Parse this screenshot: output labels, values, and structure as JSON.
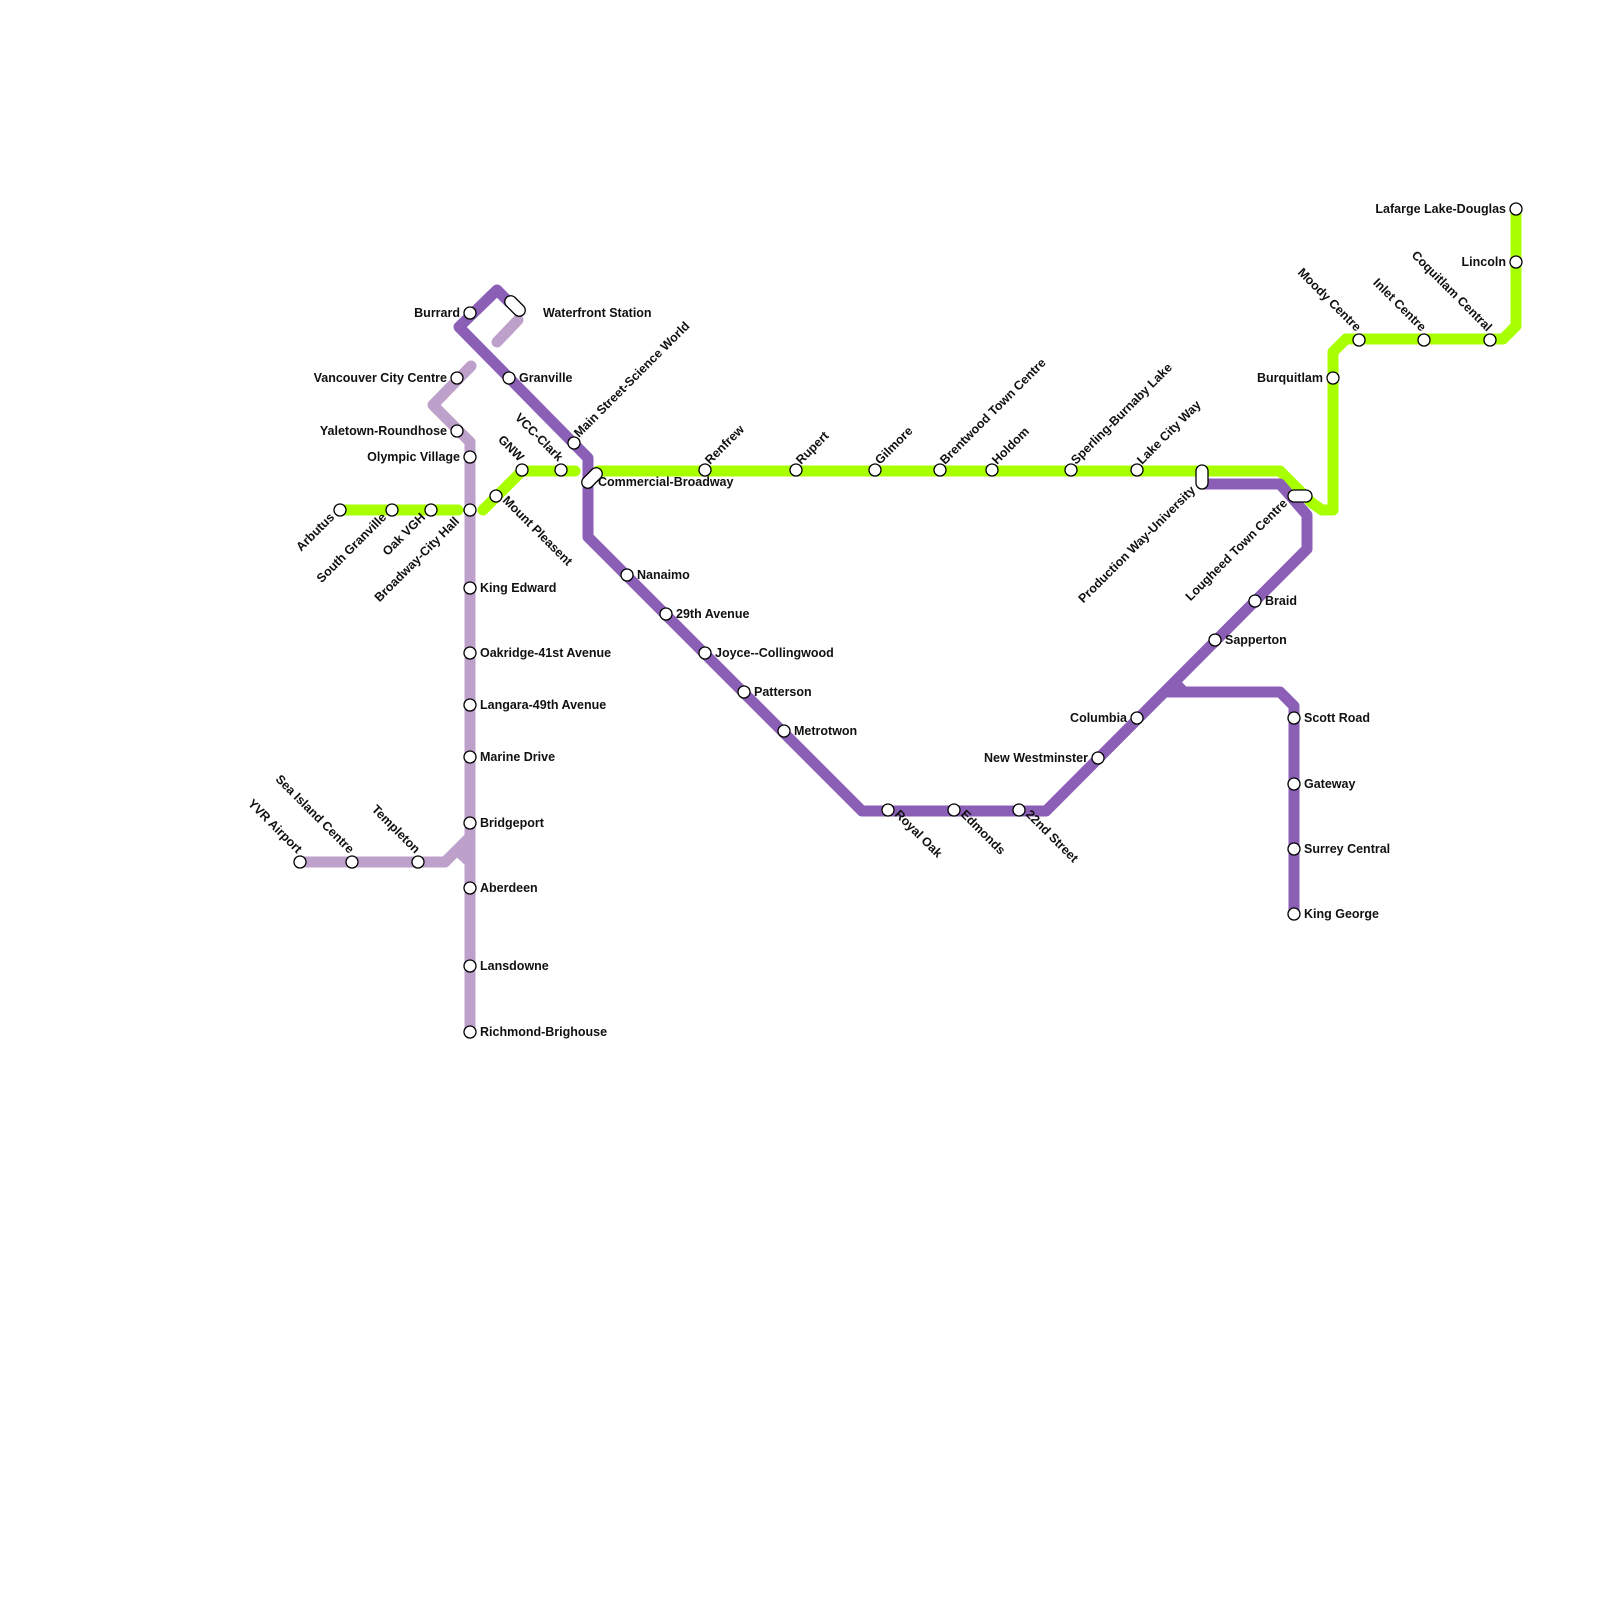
{
  "colors": {
    "expo_millennium": "#8b5fb6",
    "canada_line": "#bea1cb",
    "evergreen_green": "#a8ff00",
    "background": "#ffffff"
  },
  "stations": [
    "Waterfront Station",
    "Burrard",
    "Granville",
    "Main Street-Science World",
    "Commercial-Broadway",
    "Nanaimo",
    "29th Avenue",
    "Joyce--Collingwood",
    "Patterson",
    "Metrotwon",
    "Royal Oak",
    "Edmonds",
    "22nd Street",
    "New Westminster",
    "Columbia",
    "Sapperton",
    "Braid",
    "Lougheed Town Centre",
    "Production Way-University",
    "Scott Road",
    "Gateway",
    "Surrey Central",
    "King George",
    "Vancouver City Centre",
    "Yaletown-Roundhose",
    "Olympic Village",
    "Broadway-City Hall",
    "King Edward",
    "Oakridge-41st Avenue",
    "Langara-49th Avenue",
    "Marine Drive",
    "Bridgeport",
    "Aberdeen",
    "Lansdowne",
    "Richmond-Brighouse",
    "Templeton",
    "Sea Island Centre",
    "YVR Airport",
    "Arbutus",
    "South Granville",
    "Oak VGH",
    "Mount Pleasent",
    "GNW",
    "VCC-Clark",
    "Renfrew",
    "Rupert",
    "Gilmore",
    "Brentwood Town Centre",
    "Holdom",
    "Sperling-Burnaby Lake",
    "Lake City Way",
    "Burquitlam",
    "Moody Centre",
    "Inlet Centre",
    "Coquitlam Central",
    "Lincoln",
    "Lafarge Lake-Douglas"
  ]
}
